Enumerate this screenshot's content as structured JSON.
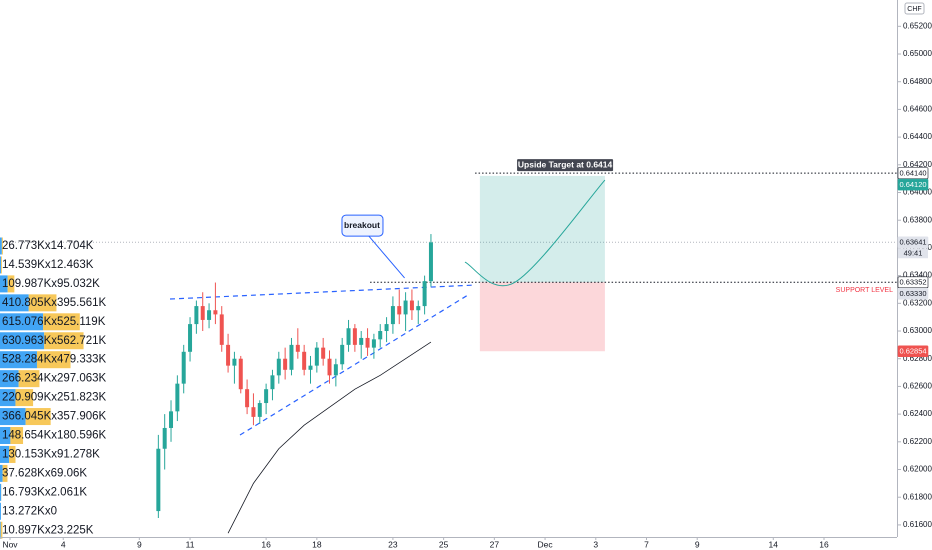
{
  "chart_data": {
    "type": "candlestick",
    "symbol_currency": "CHF",
    "x": [
      9.75,
      10,
      10.25,
      10.5,
      10.75,
      11,
      11.25,
      11.5,
      11.75,
      12,
      12.25,
      12.5,
      12.75,
      13,
      13.25,
      13.5,
      13.75,
      16,
      16.25,
      16.5,
      16.75,
      17,
      17.25,
      17.5,
      17.75,
      18,
      18.25,
      18.5,
      18.75,
      19,
      19.25,
      19.5,
      19.75,
      20,
      20.25,
      20.5,
      20.75,
      23,
      23.25,
      23.5,
      23.75,
      24,
      24.25,
      24.5
    ],
    "open": [
      0.617,
      0.6215,
      0.623,
      0.6242,
      0.6262,
      0.6285,
      0.6305,
      0.6318,
      0.6308,
      0.6315,
      0.6312,
      0.629,
      0.6275,
      0.628,
      0.6258,
      0.6245,
      0.6238,
      0.6248,
      0.6258,
      0.6268,
      0.628,
      0.6272,
      0.629,
      0.6285,
      0.6272,
      0.6275,
      0.6288,
      0.628,
      0.6268,
      0.6276,
      0.629,
      0.6302,
      0.629,
      0.6295,
      0.6288,
      0.6294,
      0.63,
      0.6305,
      0.6318,
      0.6312,
      0.6322,
      0.6315,
      0.6318,
      0.6336
    ],
    "high": [
      0.6225,
      0.624,
      0.625,
      0.6268,
      0.629,
      0.631,
      0.6322,
      0.6328,
      0.632,
      0.6335,
      0.6318,
      0.6298,
      0.6285,
      0.6282,
      0.6265,
      0.6255,
      0.625,
      0.6262,
      0.6272,
      0.6285,
      0.6288,
      0.6295,
      0.6302,
      0.629,
      0.6282,
      0.6292,
      0.6295,
      0.6286,
      0.628,
      0.6295,
      0.6308,
      0.6305,
      0.63,
      0.6302,
      0.6298,
      0.6305,
      0.631,
      0.6325,
      0.633,
      0.6328,
      0.633,
      0.6322,
      0.634,
      0.637
    ],
    "low": [
      0.6165,
      0.62,
      0.622,
      0.6235,
      0.6255,
      0.6278,
      0.6298,
      0.63,
      0.6302,
      0.6305,
      0.6285,
      0.627,
      0.6262,
      0.6255,
      0.624,
      0.6232,
      0.6233,
      0.624,
      0.625,
      0.6262,
      0.6265,
      0.6268,
      0.628,
      0.6268,
      0.6262,
      0.627,
      0.6275,
      0.6262,
      0.626,
      0.6272,
      0.6285,
      0.6285,
      0.628,
      0.6282,
      0.628,
      0.6288,
      0.6292,
      0.6298,
      0.6305,
      0.63,
      0.6308,
      0.6305,
      0.6312,
      0.6332
    ],
    "close": [
      0.6215,
      0.623,
      0.6242,
      0.6262,
      0.6285,
      0.6305,
      0.6318,
      0.6308,
      0.6315,
      0.6312,
      0.629,
      0.6275,
      0.628,
      0.6258,
      0.6245,
      0.6238,
      0.6248,
      0.6258,
      0.6268,
      0.628,
      0.6272,
      0.629,
      0.6285,
      0.6272,
      0.6275,
      0.6288,
      0.628,
      0.6268,
      0.6276,
      0.629,
      0.6302,
      0.629,
      0.6295,
      0.6288,
      0.6294,
      0.63,
      0.6305,
      0.6318,
      0.6312,
      0.6322,
      0.6315,
      0.6318,
      0.6336,
      0.6364
    ],
    "up_color": "#26a69a",
    "down_color": "#ef5350",
    "moving_average": {
      "x": [
        12.5,
        13.5,
        16.5,
        17.5,
        18.5,
        19.5,
        20.5,
        23.5,
        24.5
      ],
      "values": [
        0.6154,
        0.619,
        0.6215,
        0.6232,
        0.6245,
        0.6258,
        0.6268,
        0.628,
        0.6292
      ],
      "color": "#131722"
    },
    "xlim": [
      1,
      46
    ],
    "xticks": [
      {
        "value": 1,
        "label": "Nov"
      },
      4,
      9,
      11,
      16,
      18,
      23,
      25,
      27,
      {
        "value": 31,
        "label": "Dec"
      },
      {
        "value": 33,
        "label": "3"
      },
      {
        "value": 37,
        "label": "7"
      },
      {
        "value": 39,
        "label": "9"
      },
      {
        "value": 44,
        "label": "14"
      },
      {
        "value": 46,
        "label": "16"
      }
    ],
    "ylim": [
      0.6152,
      0.6539
    ],
    "yticks": [
      {
        "value": 0.652,
        "label": "0.65200"
      },
      {
        "value": 0.65,
        "label": "0.65000"
      },
      {
        "value": 0.648,
        "label": "0.64800"
      },
      {
        "value": 0.646,
        "label": "0.64600"
      },
      {
        "value": 0.644,
        "label": "0.64400"
      },
      {
        "value": 0.642,
        "label": "0.64200"
      },
      {
        "value": 0.64,
        "label": "0.64000"
      },
      {
        "value": 0.638,
        "label": "0.63800"
      },
      {
        "value": 0.636,
        "label": "0.63600"
      },
      {
        "value": 0.634,
        "label": "0.63400"
      },
      {
        "value": 0.632,
        "label": "0.63200"
      },
      {
        "value": 0.63,
        "label": "0.63000"
      },
      {
        "value": 0.628,
        "label": "0.62800"
      },
      {
        "value": 0.626,
        "label": "0.62600"
      },
      {
        "value": 0.624,
        "label": "0.62400"
      },
      {
        "value": 0.622,
        "label": "0.62200"
      },
      {
        "value": 0.62,
        "label": "0.62000"
      },
      {
        "value": 0.618,
        "label": "0.61800"
      },
      {
        "value": 0.616,
        "label": "0.61600"
      }
    ],
    "grid": false,
    "volume_profile": {
      "buy_color": "#42a5f5",
      "sell_color": "#f7c85a",
      "rows": [
        {
          "label": "26.773Kx14.704K",
          "buy": 26.773,
          "sell": 14.704
        },
        {
          "label": "14.539Kx12.463K",
          "buy": 14.539,
          "sell": 12.463
        },
        {
          "label": "109.987Kx95.032K",
          "buy": 109.987,
          "sell": 95.032
        },
        {
          "label": "410.805Kx395.561K",
          "buy": 410.805,
          "sell": 395.561
        },
        {
          "label": "615.076Kx525.119K",
          "buy": 615.076,
          "sell": 525.119
        },
        {
          "label": "630.963Kx562.721K",
          "buy": 630.963,
          "sell": 562.721
        },
        {
          "label": "528.284Kx479.333K",
          "buy": 528.284,
          "sell": 479.333
        },
        {
          "label": "266.234Kx297.063K",
          "buy": 266.234,
          "sell": 297.063
        },
        {
          "label": "220.909Kx251.823K",
          "buy": 220.909,
          "sell": 251.823
        },
        {
          "label": "366.045Kx357.906K",
          "buy": 366.045,
          "sell": 357.906
        },
        {
          "label": "148.654Kx180.596K",
          "buy": 148.654,
          "sell": 180.596
        },
        {
          "label": "130.153Kx91.278K",
          "buy": 130.153,
          "sell": 91.278
        },
        {
          "label": "37.628Kx69.06K",
          "buy": 37.628,
          "sell": 69.06
        },
        {
          "label": "16.793Kx2.061K",
          "buy": 16.793,
          "sell": 2.061
        },
        {
          "label": "13.272Kx0",
          "buy": 13.272,
          "sell": 0
        },
        {
          "label": "10.897Kx23.225K",
          "buy": 10.897,
          "sell": 23.225
        }
      ]
    },
    "trendlines": [
      {
        "x": [
          10.21,
          26.24
        ],
        "y": [
          0.63231,
          0.63332
        ]
      },
      {
        "x": [
          12.97,
          25.96
        ],
        "y": [
          0.62249,
          0.6326
        ]
      }
    ],
    "support": {
      "label": "SUPPORT LEVEL",
      "x": 20.1,
      "value": 0.63352
    },
    "target": {
      "label": "Upside Target at 0.6414",
      "x": 26.24,
      "value": 0.6414
    },
    "position": {
      "x": [
        26.43,
        33.36
      ],
      "entry": 0.63352,
      "target": 0.6412,
      "stop": 0.62854
    },
    "projection": {
      "x": [
        25.84,
        27.81,
        33.36
      ],
      "values": [
        0.63498,
        0.63352,
        0.6409
      ]
    },
    "callout": {
      "label": "breakout",
      "x": [
        19.78,
        23.46
      ],
      "y": [
        0.63765,
        0.63383
      ]
    },
    "price_labels": [
      {
        "value": 0.6414,
        "label": "0.64140",
        "color": "#ffffff",
        "text_color": "#131722"
      },
      {
        "value": 0.6412,
        "label": "0.64120",
        "color": "#26a69a",
        "text_color": "#ffffff"
      },
      {
        "value": 0.63641,
        "label": "0.63641",
        "color": "#e0e3eb",
        "text_color": "#131722"
      },
      {
        "value": 0.63352,
        "label": "0.63352",
        "color": "#ffffff",
        "text_color": "#131722"
      },
      {
        "value": 0.6333,
        "label": "0.63330",
        "color": "#e0e3eb",
        "text_color": "#131722"
      },
      {
        "value": 0.62854,
        "label": "0.62854",
        "color": "#ef5350",
        "text_color": "#ffffff"
      }
    ],
    "countdown": "49:41"
  }
}
